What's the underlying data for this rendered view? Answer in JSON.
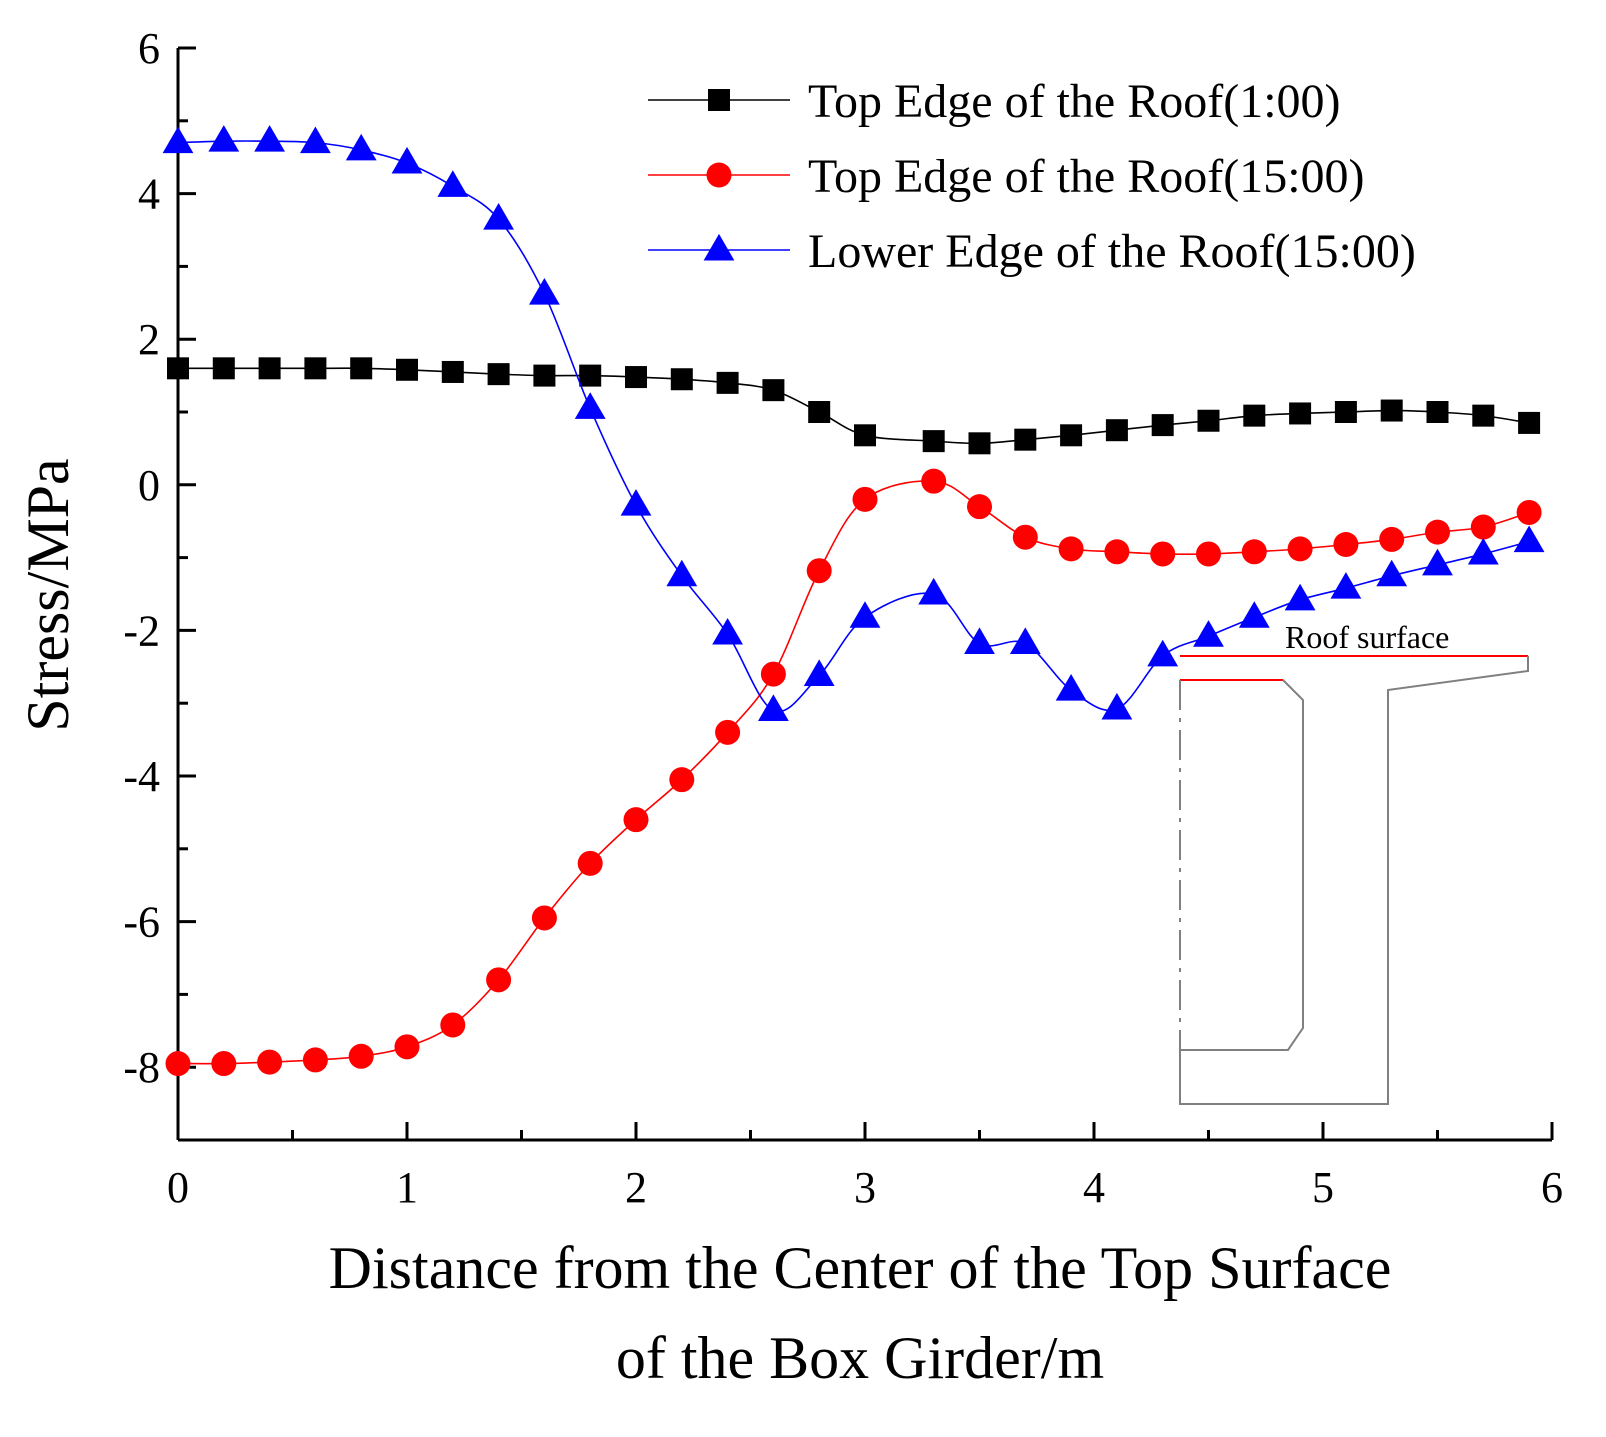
{
  "chart_data": {
    "type": "line",
    "title": "",
    "xlabel_lines": [
      "Distance from the Center of the Top Surface",
      "of the Box Girder/m"
    ],
    "ylabel": "Stress/MPa",
    "xlim": [
      0,
      6
    ],
    "ylim": [
      -9,
      6
    ],
    "xticks": [
      0,
      1,
      2,
      3,
      4,
      5,
      6
    ],
    "yticks": [
      -8,
      -6,
      -4,
      -2,
      0,
      2,
      4,
      6
    ],
    "x_minor_step": 0.5,
    "y_minor_step": 1,
    "grid": false,
    "legend_position": "top-right",
    "series": [
      {
        "name": "Top Edge of the Roof(1:00)",
        "color": "#000000",
        "marker": "square",
        "x": [
          0,
          0.2,
          0.4,
          0.6,
          0.8,
          1.0,
          1.2,
          1.4,
          1.6,
          1.8,
          2.0,
          2.2,
          2.4,
          2.6,
          2.8,
          3.0,
          3.3,
          3.5,
          3.7,
          3.9,
          4.1,
          4.3,
          4.5,
          4.7,
          4.9,
          5.1,
          5.3,
          5.5,
          5.7,
          5.9
        ],
        "values": [
          1.6,
          1.6,
          1.6,
          1.6,
          1.6,
          1.58,
          1.55,
          1.52,
          1.5,
          1.5,
          1.48,
          1.45,
          1.4,
          1.3,
          1.0,
          0.68,
          0.6,
          0.57,
          0.62,
          0.68,
          0.75,
          0.82,
          0.88,
          0.95,
          0.98,
          1.0,
          1.02,
          1.0,
          0.95,
          0.85
        ]
      },
      {
        "name": "Top Edge of the Roof(15:00)",
        "color": "#ff0000",
        "marker": "circle",
        "x": [
          0,
          0.2,
          0.4,
          0.6,
          0.8,
          1.0,
          1.2,
          1.4,
          1.6,
          1.8,
          2.0,
          2.2,
          2.4,
          2.6,
          2.8,
          3.0,
          3.3,
          3.5,
          3.7,
          3.9,
          4.1,
          4.3,
          4.5,
          4.7,
          4.9,
          5.1,
          5.3,
          5.5,
          5.7,
          5.9
        ],
        "values": [
          -7.95,
          -7.95,
          -7.93,
          -7.9,
          -7.85,
          -7.72,
          -7.42,
          -6.8,
          -5.95,
          -5.2,
          -4.6,
          -4.05,
          -3.4,
          -2.6,
          -1.18,
          -0.2,
          0.05,
          -0.3,
          -0.72,
          -0.88,
          -0.92,
          -0.95,
          -0.95,
          -0.92,
          -0.88,
          -0.82,
          -0.75,
          -0.65,
          -0.58,
          -0.38
        ]
      },
      {
        "name": "Lower Edge of the Roof(15:00)",
        "color": "#0000ff",
        "marker": "triangle",
        "x": [
          0,
          0.2,
          0.4,
          0.6,
          0.8,
          1.0,
          1.2,
          1.4,
          1.6,
          1.8,
          2.0,
          2.2,
          2.4,
          2.6,
          2.8,
          3.0,
          3.3,
          3.5,
          3.7,
          3.9,
          4.1,
          4.3,
          4.5,
          4.7,
          4.9,
          5.1,
          5.3,
          5.5,
          5.7,
          5.9
        ],
        "values": [
          4.7,
          4.72,
          4.72,
          4.7,
          4.6,
          4.42,
          4.1,
          3.65,
          2.62,
          1.05,
          -0.28,
          -1.25,
          -2.05,
          -3.1,
          -2.62,
          -1.82,
          -1.5,
          -2.18,
          -2.18,
          -2.82,
          -3.08,
          -2.35,
          -2.08,
          -1.82,
          -1.58,
          -1.42,
          -1.25,
          -1.1,
          -0.95,
          -0.78
        ]
      }
    ],
    "inset": {
      "label": "Roof surface",
      "highlight_color": "#ff0000",
      "outline_color": "#808080"
    }
  }
}
